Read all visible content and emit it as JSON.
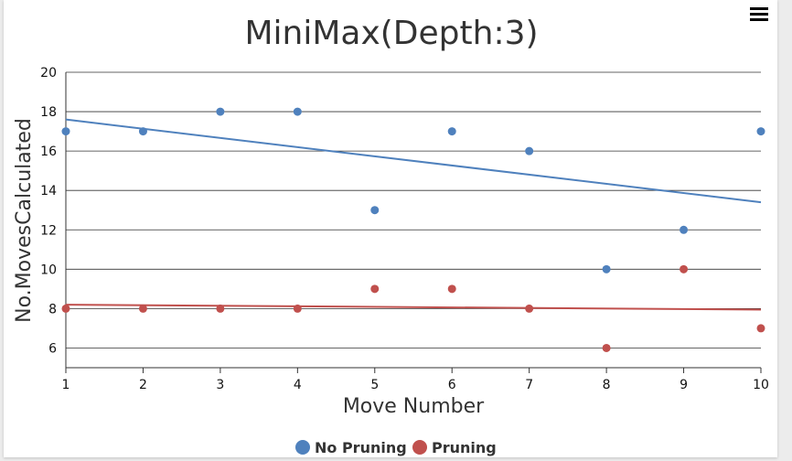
{
  "chart_data": {
    "type": "scatter",
    "title": "MiniMax(Depth:3)",
    "xlabel": "Move Number",
    "ylabel": "No.MovesCalculated",
    "xlim": [
      1,
      10
    ],
    "ylim": [
      5,
      20
    ],
    "xticks": [
      "1",
      "2",
      "3",
      "4",
      "5",
      "6",
      "7",
      "8",
      "9",
      "10"
    ],
    "yticks": [
      "6",
      "8",
      "10",
      "12",
      "14",
      "16",
      "18",
      "20"
    ],
    "grid": true,
    "legend_position": "bottom-center",
    "series": [
      {
        "name": "No Pruning",
        "color": "#4f81bd",
        "x": [
          1,
          2,
          3,
          4,
          5,
          6,
          7,
          8,
          9,
          10
        ],
        "y": [
          17,
          17,
          18,
          18,
          13,
          17,
          16,
          10,
          12,
          17
        ],
        "trendline": {
          "y_start": 17.6,
          "y_end": 13.4
        }
      },
      {
        "name": "Pruning",
        "color": "#c0504d",
        "x": [
          1,
          2,
          3,
          4,
          5,
          6,
          7,
          8,
          9,
          10
        ],
        "y": [
          8,
          8,
          8,
          8,
          9,
          9,
          8,
          6,
          10,
          7
        ],
        "trendline": {
          "y_start": 8.2,
          "y_end": 7.95
        }
      }
    ]
  },
  "toolbar": {
    "menu_icon": "hamburger-menu-icon"
  }
}
